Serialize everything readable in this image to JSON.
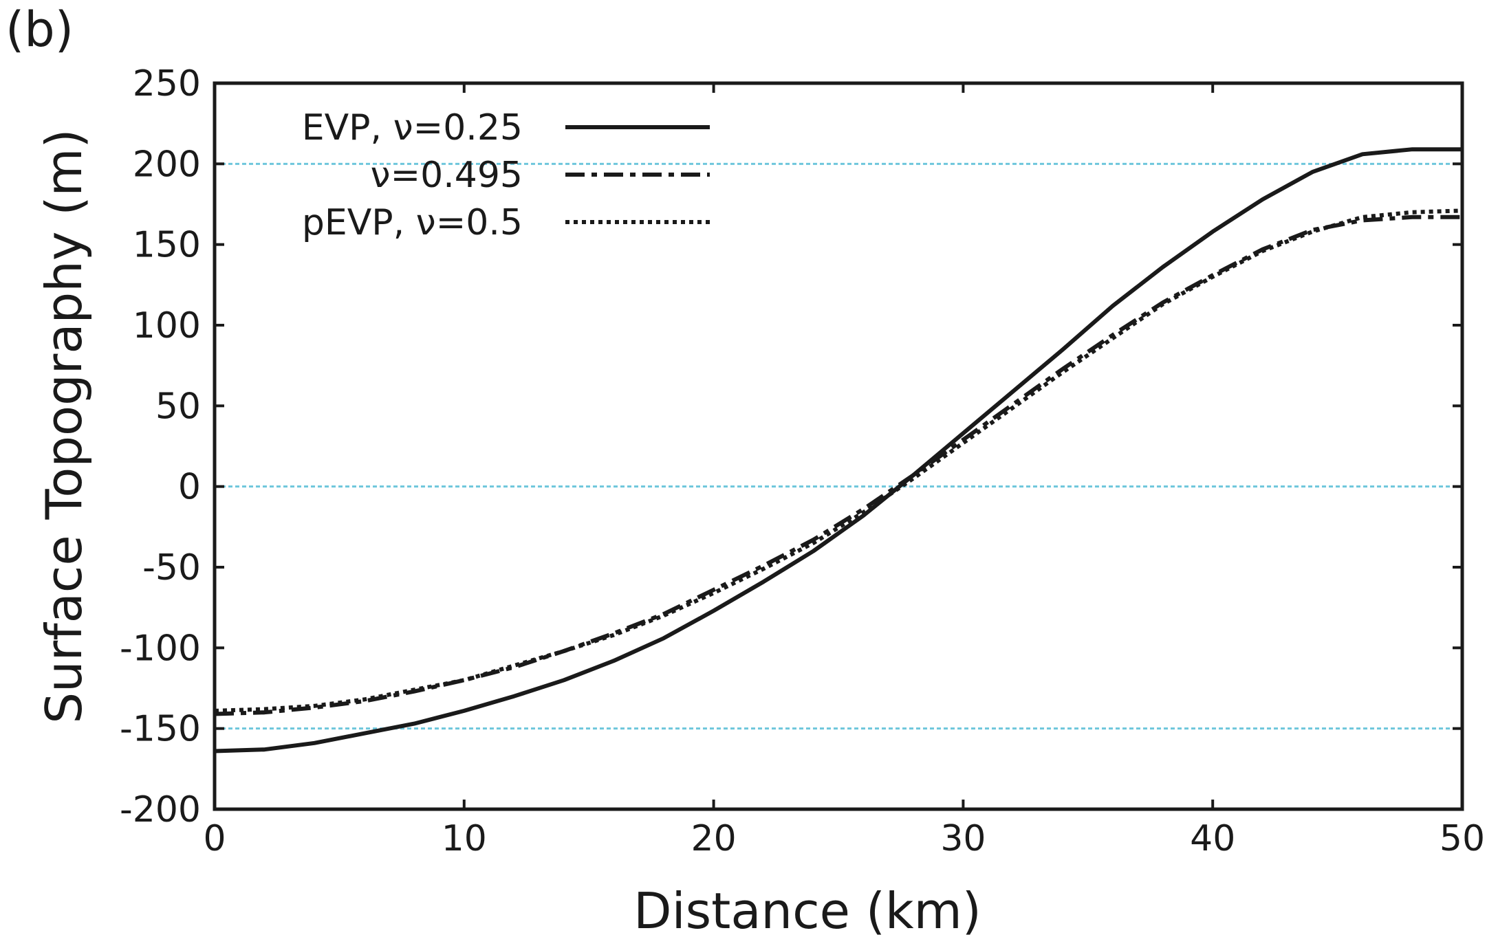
{
  "panel_label": "(b)",
  "chart_data": {
    "type": "line",
    "title": "",
    "xlabel": "Distance (km)",
    "ylabel": "Surface Topography (m)",
    "xlim": [
      0,
      50
    ],
    "ylim": [
      -200,
      250
    ],
    "xticks": [
      0,
      10,
      20,
      30,
      40,
      50
    ],
    "yticks": [
      -200,
      -150,
      -100,
      -50,
      0,
      50,
      100,
      150,
      200,
      250
    ],
    "reference_lines": [
      200,
      0,
      -150
    ],
    "reference_line_color": "#6ec6dc",
    "legend_position": "top-left",
    "series": [
      {
        "name": "EVP, ν=0.25",
        "style": "solid",
        "x": [
          0,
          2,
          4,
          6,
          8,
          10,
          12,
          14,
          16,
          18,
          20,
          22,
          24,
          26,
          28,
          30,
          32,
          34,
          36,
          38,
          40,
          42,
          44,
          46,
          48,
          50
        ],
        "y": [
          -164,
          -163,
          -159,
          -153,
          -147,
          -139,
          -130,
          -120,
          -108,
          -94,
          -77,
          -59,
          -40,
          -18,
          7,
          33,
          59,
          85,
          112,
          136,
          158,
          178,
          195,
          206,
          209,
          209
        ]
      },
      {
        "name": "ν=0.495",
        "style": "dashdot",
        "x": [
          0,
          2,
          4,
          6,
          8,
          10,
          12,
          14,
          16,
          18,
          20,
          22,
          24,
          26,
          28,
          30,
          32,
          34,
          36,
          38,
          40,
          42,
          44,
          46,
          48,
          50
        ],
        "y": [
          -141,
          -140,
          -137,
          -133,
          -127,
          -120,
          -112,
          -102,
          -91,
          -79,
          -64,
          -49,
          -33,
          -14,
          7,
          29,
          51,
          73,
          94,
          114,
          131,
          147,
          159,
          165,
          167,
          167
        ]
      },
      {
        "name": "pEVP, ν=0.5",
        "style": "dotted",
        "x": [
          0,
          2,
          4,
          6,
          8,
          10,
          12,
          14,
          16,
          18,
          20,
          22,
          24,
          26,
          28,
          30,
          32,
          34,
          36,
          38,
          40,
          42,
          44,
          46,
          48,
          50
        ],
        "y": [
          -139,
          -138,
          -136,
          -132,
          -126,
          -120,
          -111,
          -102,
          -92,
          -80,
          -66,
          -51,
          -35,
          -16,
          5,
          27,
          49,
          71,
          92,
          113,
          130,
          146,
          158,
          167,
          170,
          171
        ]
      }
    ]
  }
}
